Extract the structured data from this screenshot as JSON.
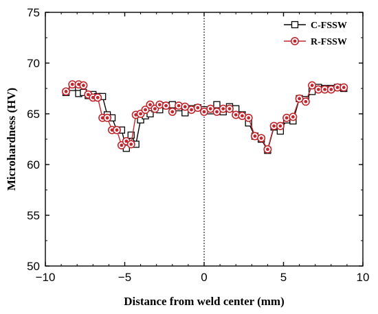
{
  "chart_data": {
    "type": "line",
    "xlabel": "Distance from weld center (mm)",
    "ylabel": "Microhardness (HV)",
    "xlim": [
      -10,
      10
    ],
    "ylim": [
      50,
      75
    ],
    "xticks": [
      -10,
      -5,
      0,
      5,
      10
    ],
    "yticks": [
      50,
      55,
      60,
      65,
      70,
      75
    ],
    "legend_position": "top-right",
    "reference_line_x": 0,
    "series": [
      {
        "name": "C-FSSW",
        "color": "#000000",
        "marker": "square-open",
        "x": [
          -8.7,
          -8.3,
          -7.9,
          -7.6,
          -7.3,
          -7.0,
          -6.7,
          -6.4,
          -6.1,
          -5.8,
          -5.5,
          -5.2,
          -4.9,
          -4.6,
          -4.3,
          -4.0,
          -3.7,
          -3.4,
          -3.1,
          -2.8,
          -2.4,
          -2.0,
          -1.6,
          -1.2,
          -0.8,
          -0.4,
          0,
          0.4,
          0.8,
          1.2,
          1.6,
          2.0,
          2.4,
          2.8,
          3.2,
          3.6,
          4.0,
          4.4,
          4.8,
          5.2,
          5.6,
          6.0,
          6.4,
          6.8,
          7.2,
          7.6,
          8.0,
          8.4,
          8.8
        ],
        "y": [
          67.1,
          67.6,
          67.0,
          67.1,
          66.8,
          66.9,
          66.7,
          66.7,
          64.9,
          64.6,
          63.4,
          63.4,
          61.6,
          62.9,
          62.0,
          64.4,
          64.8,
          65.0,
          65.5,
          65.4,
          65.8,
          65.9,
          65.6,
          65.1,
          65.5,
          65.6,
          65.4,
          65.3,
          65.9,
          65.2,
          65.7,
          65.5,
          64.9,
          64.1,
          62.8,
          62.5,
          61.4,
          63.7,
          63.3,
          64.4,
          64.3,
          66.5,
          66.4,
          67.2,
          67.6,
          67.5,
          67.5,
          67.6,
          67.5
        ]
      },
      {
        "name": "R-FSSW",
        "color": "#c0262d",
        "marker": "circle-open",
        "x": [
          -8.7,
          -8.3,
          -7.9,
          -7.6,
          -7.3,
          -7.0,
          -6.7,
          -6.4,
          -6.1,
          -5.8,
          -5.5,
          -5.2,
          -4.9,
          -4.6,
          -4.3,
          -4.0,
          -3.7,
          -3.4,
          -3.1,
          -2.8,
          -2.4,
          -2.0,
          -1.6,
          -1.2,
          -0.8,
          -0.4,
          0,
          0.4,
          0.8,
          1.2,
          1.6,
          2.0,
          2.4,
          2.8,
          3.2,
          3.6,
          4.0,
          4.4,
          4.8,
          5.2,
          5.6,
          6.0,
          6.4,
          6.8,
          7.2,
          7.6,
          8.0,
          8.4,
          8.8
        ],
        "y": [
          67.2,
          67.9,
          67.9,
          67.8,
          66.9,
          66.6,
          66.6,
          64.6,
          64.6,
          63.4,
          63.4,
          61.9,
          62.3,
          62.0,
          64.9,
          65.0,
          65.4,
          65.9,
          65.5,
          65.9,
          65.8,
          65.2,
          65.8,
          65.7,
          65.4,
          65.6,
          65.2,
          65.5,
          65.2,
          65.5,
          65.5,
          64.9,
          64.8,
          64.6,
          62.8,
          62.6,
          61.5,
          63.8,
          63.8,
          64.6,
          64.7,
          66.5,
          66.2,
          67.8,
          67.4,
          67.4,
          67.4,
          67.6,
          67.6
        ]
      }
    ]
  }
}
